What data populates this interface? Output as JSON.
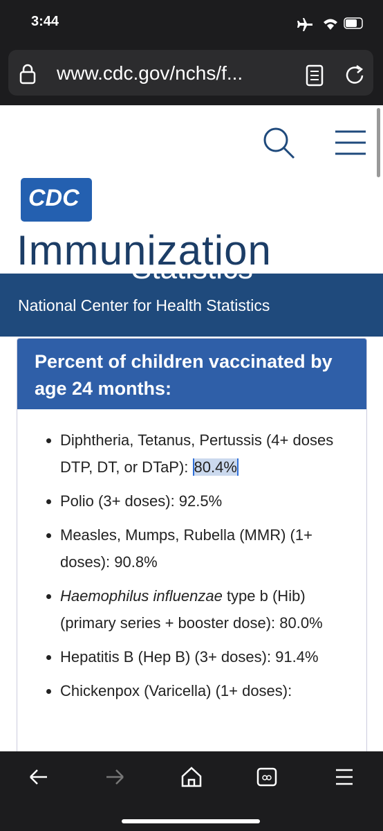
{
  "status_bar": {
    "time": "3:44"
  },
  "browser": {
    "url": "www.cdc.gov/nchs/f..."
  },
  "header": {
    "logo": "CDC",
    "title": "Immunization",
    "subtitle_overlap": "Statistics",
    "band_text": "National Center for Health Statistics"
  },
  "card": {
    "heading": "Percent of children vaccinated by age 24 months:",
    "items": [
      {
        "text": "Diphtheria, Tetanus, Pertussis (4+ doses DTP, DT, or DTaP): ",
        "selected": "80.4%"
      },
      {
        "text": "Polio (3+ doses): 92.5%"
      },
      {
        "text": "Measles, Mumps, Rubella (MMR) (1+ doses): 90.8%"
      },
      {
        "italic": "Haemophilus influenzae",
        "text": " type b (Hib) (primary series + booster dose): 80.0%"
      },
      {
        "text": "Hepatitis B (Hep B) (3+ doses): 91.4%"
      },
      {
        "text": "Chickenpox (Varicella) (1+ doses):"
      }
    ]
  }
}
